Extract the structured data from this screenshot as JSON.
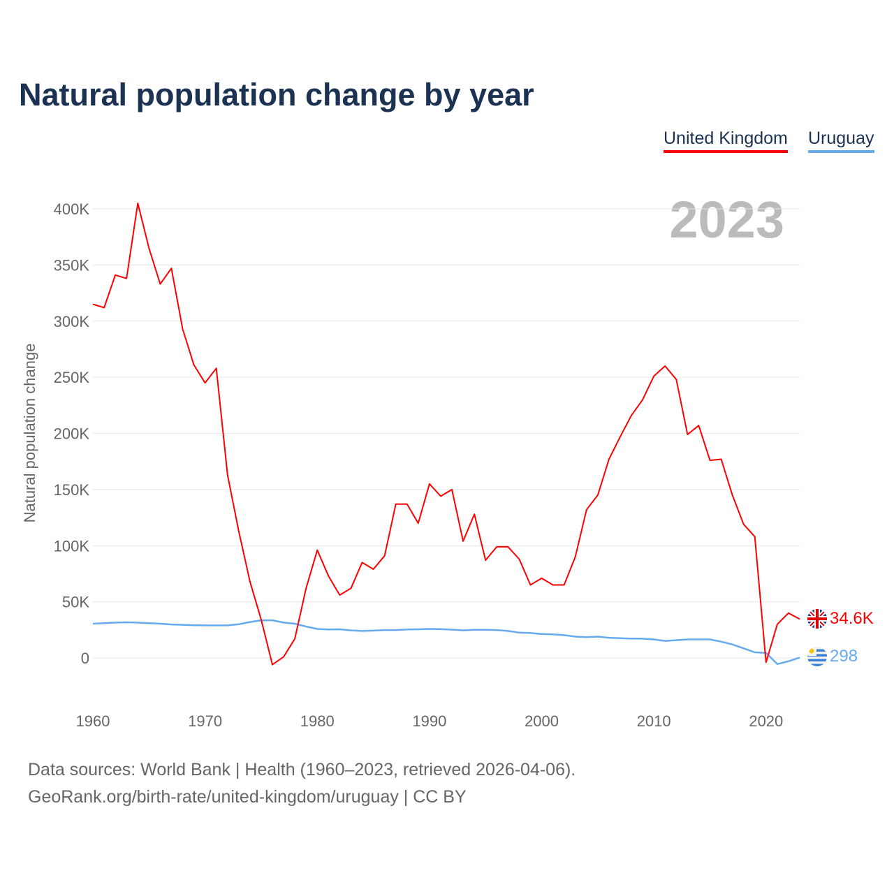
{
  "title": "Natural population change by year",
  "year_label": "2023",
  "footer": {
    "sources": "Data sources: World Bank | Health (1960–2023, retrieved 2026-04-06).",
    "link": "GeoRank.org/birth-rate/united-kingdom/uruguay | CC BY"
  },
  "chart_data": {
    "type": "line",
    "title": "Natural population change by year",
    "xlabel": "",
    "ylabel": "Natural population change",
    "xlim": [
      1960,
      2023
    ],
    "ylim": [
      -50000,
      400000
    ],
    "x_ticks": [
      1960,
      1970,
      1980,
      1990,
      2000,
      2010,
      2020
    ],
    "y_ticks": [
      0,
      50000,
      100000,
      150000,
      200000,
      250000,
      300000,
      350000,
      400000
    ],
    "y_tick_labels": [
      "0",
      "50K",
      "100K",
      "150K",
      "200K",
      "250K",
      "300K",
      "350K",
      "400K"
    ],
    "grid": true,
    "legend_position": "top-right",
    "x_start": 1960,
    "series": [
      {
        "name": "United Kingdom",
        "color": "#ff0000",
        "end_label": "34.6K",
        "flag": "uk-flag",
        "values": [
          315000,
          312000,
          341000,
          338000,
          405000,
          365000,
          333000,
          347000,
          293000,
          261000,
          245000,
          258000,
          163000,
          113000,
          68000,
          34000,
          -6000,
          1000,
          17000,
          62000,
          96000,
          73000,
          56000,
          62000,
          85000,
          79000,
          91000,
          137000,
          137000,
          120000,
          155000,
          144000,
          150000,
          104000,
          128000,
          87000,
          99000,
          99000,
          88000,
          65000,
          71000,
          65000,
          65000,
          90000,
          132000,
          145000,
          177000,
          197000,
          216000,
          230000,
          251000,
          260000,
          248000,
          199000,
          207000,
          176000,
          177000,
          145000,
          119000,
          108000,
          -4000,
          30000,
          40000,
          34600
        ]
      },
      {
        "name": "Uruguay",
        "color": "#66aaee",
        "end_label": "298",
        "flag": "uruguay-flag",
        "values": [
          30500,
          31000,
          31500,
          31700,
          31500,
          31000,
          30500,
          29800,
          29500,
          29200,
          29000,
          29000,
          29000,
          30000,
          32000,
          33500,
          33500,
          31500,
          30500,
          28000,
          25800,
          25300,
          25500,
          24500,
          24000,
          24300,
          24800,
          24800,
          25300,
          25500,
          25800,
          25600,
          25200,
          24600,
          25000,
          25000,
          24800,
          24000,
          22500,
          22300,
          21300,
          21000,
          20300,
          19000,
          18500,
          19000,
          18000,
          17600,
          17200,
          17200,
          16500,
          15200,
          15800,
          16500,
          16500,
          16500,
          14500,
          12000,
          8500,
          5000,
          4500,
          -5500,
          -3000,
          298
        ]
      }
    ]
  }
}
